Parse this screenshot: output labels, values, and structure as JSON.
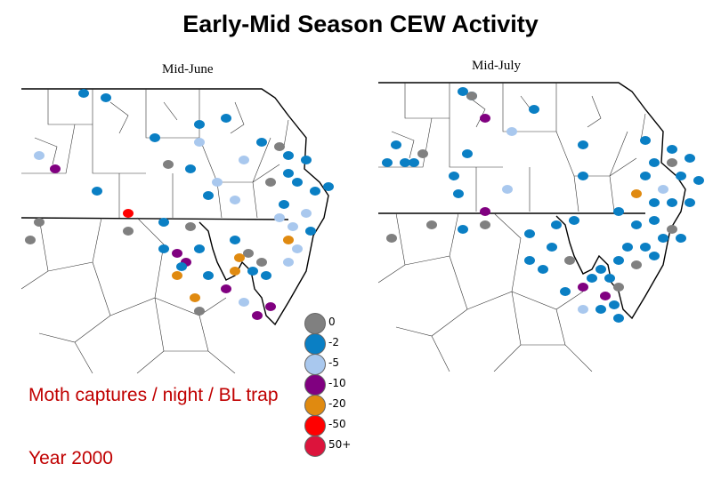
{
  "title": "Early-Mid Season CEW Activity",
  "maps": {
    "june_label": "Mid-June",
    "july_label": "Mid-July"
  },
  "legend": {
    "title": "Moth captures / night / BL trap",
    "classes": [
      {
        "label": "0",
        "color": "#808080"
      },
      {
        "label": "-2",
        "color": "#0a7fc4"
      },
      {
        "label": "-5",
        "color": "#a9c8ee"
      },
      {
        "label": "-10",
        "color": "#800080"
      },
      {
        "label": "-20",
        "color": "#e08a10"
      },
      {
        "label": "-50",
        "color": "#ff0000"
      },
      {
        "label": "50+",
        "color": "#dc143c"
      }
    ]
  },
  "year_label": "Year 2000"
}
